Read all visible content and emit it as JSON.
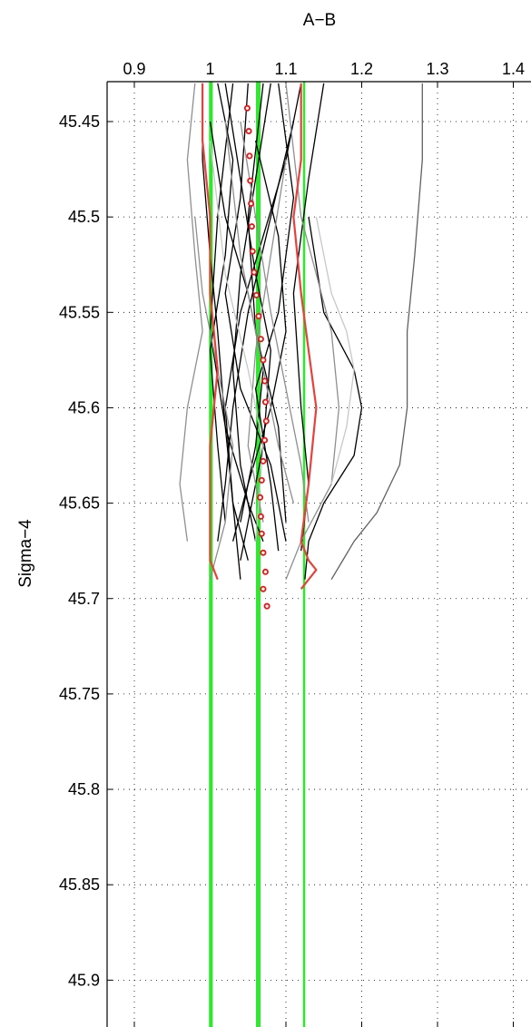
{
  "chart_data": {
    "type": "line",
    "title": "",
    "xlabel": "A−B",
    "ylabel": "Sigma−4",
    "x_axis_position": "top",
    "y_axis_reversed": true,
    "xlim": [
      0.88,
      1.41
    ],
    "ylim": [
      45.43,
      45.935
    ],
    "xticks": [
      "0.9",
      "1",
      "1.1",
      "1.2",
      "1.3",
      "1.4"
    ],
    "xtick_values": [
      0.9,
      1.0,
      1.1,
      1.2,
      1.3,
      1.4
    ],
    "yticks": [
      "45.45",
      "45.5",
      "45.55",
      "45.6",
      "45.65",
      "45.7",
      "45.75",
      "45.8",
      "45.85",
      "45.9"
    ],
    "ytick_values": [
      45.45,
      45.5,
      45.55,
      45.6,
      45.65,
      45.7,
      45.75,
      45.8,
      45.85,
      45.9
    ],
    "grid": true,
    "legend": "none",
    "colors": {
      "black": "#000000",
      "dark_gray": "#606060",
      "gray": "#8f8f8f",
      "light_gray": "#c8c8c8",
      "highlight": "#e8413c",
      "reference": "#2ee82e",
      "marker": "#ee1111"
    },
    "reference_lines": [
      {
        "x": 1.0,
        "color": "reference"
      },
      {
        "x": 1.002,
        "color": "reference"
      },
      {
        "x": 1.062,
        "color": "reference"
      },
      {
        "x": 1.065,
        "color": "reference"
      },
      {
        "x": 1.124,
        "color": "reference"
      }
    ],
    "profiles": [
      {
        "color": "black",
        "points": [
          [
            0.99,
            45.43
          ],
          [
            0.99,
            45.47
          ],
          [
            1.0,
            45.52
          ],
          [
            1.01,
            45.56
          ],
          [
            1.02,
            45.61
          ],
          [
            1.03,
            45.65
          ],
          [
            1.04,
            45.69
          ]
        ]
      },
      {
        "color": "black",
        "points": [
          [
            1.02,
            45.43
          ],
          [
            1.04,
            45.48
          ],
          [
            1.06,
            45.53
          ],
          [
            1.08,
            45.57
          ],
          [
            1.07,
            45.62
          ],
          [
            1.05,
            45.66
          ],
          [
            1.04,
            45.68
          ]
        ]
      },
      {
        "color": "black",
        "points": [
          [
            1.05,
            45.43
          ],
          [
            1.04,
            45.49
          ],
          [
            1.02,
            45.54
          ],
          [
            1.04,
            45.59
          ],
          [
            1.08,
            45.63
          ],
          [
            1.1,
            45.67
          ]
        ]
      },
      {
        "color": "black",
        "points": [
          [
            1.08,
            45.43
          ],
          [
            1.06,
            45.48
          ],
          [
            1.04,
            45.53
          ],
          [
            1.03,
            45.58
          ],
          [
            1.04,
            45.63
          ],
          [
            1.06,
            45.67
          ]
        ]
      },
      {
        "color": "black",
        "points": [
          [
            1.12,
            45.43
          ],
          [
            1.1,
            45.47
          ],
          [
            1.07,
            45.51
          ],
          [
            1.04,
            45.55
          ],
          [
            1.02,
            45.6
          ],
          [
            1.03,
            45.65
          ],
          [
            1.05,
            45.68
          ]
        ]
      },
      {
        "color": "black",
        "points": [
          [
            1.15,
            45.43
          ],
          [
            1.13,
            45.48
          ],
          [
            1.11,
            45.54
          ],
          [
            1.12,
            45.6
          ],
          [
            1.13,
            45.64
          ],
          [
            1.12,
            45.675
          ]
        ]
      },
      {
        "color": "black",
        "points": [
          [
            1.13,
            45.5
          ],
          [
            1.15,
            45.55
          ],
          [
            1.19,
            45.58
          ],
          [
            1.2,
            45.6
          ],
          [
            1.19,
            45.625
          ],
          [
            1.15,
            45.65
          ],
          [
            1.13,
            45.67
          ],
          [
            1.125,
            45.69
          ]
        ]
      },
      {
        "color": "black",
        "points": [
          [
            1.0,
            45.45
          ],
          [
            1.02,
            45.5
          ],
          [
            1.05,
            45.54
          ],
          [
            1.07,
            45.58
          ],
          [
            1.06,
            45.62
          ],
          [
            1.04,
            45.66
          ]
        ]
      },
      {
        "color": "black",
        "points": [
          [
            1.03,
            45.43
          ],
          [
            1.01,
            45.5
          ],
          [
            1.0,
            45.56
          ],
          [
            1.02,
            45.61
          ],
          [
            1.05,
            45.65
          ],
          [
            1.07,
            45.67
          ]
        ]
      },
      {
        "color": "black",
        "points": [
          [
            1.06,
            45.46
          ],
          [
            1.09,
            45.51
          ],
          [
            1.1,
            45.56
          ],
          [
            1.08,
            45.6
          ],
          [
            1.05,
            45.64
          ],
          [
            1.03,
            45.67
          ]
        ]
      },
      {
        "color": "black",
        "points": [
          [
            1.09,
            45.43
          ],
          [
            1.11,
            45.49
          ],
          [
            1.09,
            45.55
          ],
          [
            1.06,
            45.59
          ],
          [
            1.08,
            45.64
          ],
          [
            1.09,
            45.675
          ]
        ]
      },
      {
        "color": "black",
        "points": [
          [
            1.11,
            45.45
          ],
          [
            1.08,
            45.5
          ],
          [
            1.05,
            45.55
          ],
          [
            1.03,
            45.6
          ],
          [
            1.02,
            45.64
          ],
          [
            1.01,
            45.67
          ]
        ]
      },
      {
        "color": "black",
        "points": [
          [
            1.01,
            45.43
          ],
          [
            1.03,
            45.47
          ],
          [
            1.02,
            45.52
          ],
          [
            1.0,
            45.57
          ],
          [
            1.01,
            45.62
          ],
          [
            1.02,
            45.66
          ]
        ]
      },
      {
        "color": "black",
        "points": [
          [
            1.07,
            45.43
          ],
          [
            1.05,
            45.5
          ],
          [
            1.06,
            45.56
          ],
          [
            1.09,
            45.61
          ],
          [
            1.1,
            45.66
          ]
        ]
      },
      {
        "color": "dark_gray",
        "points": [
          [
            1.28,
            45.43
          ],
          [
            1.28,
            45.47
          ],
          [
            1.27,
            45.52
          ],
          [
            1.26,
            45.56
          ],
          [
            1.26,
            45.6
          ],
          [
            1.25,
            45.63
          ],
          [
            1.22,
            45.655
          ],
          [
            1.19,
            45.67
          ],
          [
            1.16,
            45.69
          ]
        ]
      },
      {
        "color": "gray",
        "points": [
          [
            0.98,
            45.43
          ],
          [
            0.97,
            45.47
          ],
          [
            0.98,
            45.52
          ],
          [
            0.99,
            45.56
          ],
          [
            0.97,
            45.6
          ],
          [
            0.96,
            45.64
          ],
          [
            0.97,
            45.67
          ]
        ]
      },
      {
        "color": "gray",
        "points": [
          [
            1.1,
            45.43
          ],
          [
            1.12,
            45.5
          ],
          [
            1.16,
            45.56
          ],
          [
            1.17,
            45.6
          ],
          [
            1.16,
            45.64
          ],
          [
            1.12,
            45.67
          ],
          [
            1.1,
            45.69
          ]
        ]
      },
      {
        "color": "gray",
        "points": [
          [
            1.04,
            45.45
          ],
          [
            1.06,
            45.5
          ],
          [
            1.08,
            45.55
          ],
          [
            1.1,
            45.59
          ],
          [
            1.12,
            45.63
          ],
          [
            1.13,
            45.66
          ]
        ]
      },
      {
        "color": "gray",
        "points": [
          [
            0.98,
            45.5
          ],
          [
            0.99,
            45.54
          ],
          [
            1.01,
            45.58
          ],
          [
            1.03,
            45.62
          ],
          [
            1.02,
            45.66
          ],
          [
            1.0,
            45.69
          ]
        ]
      },
      {
        "color": "gray",
        "points": [
          [
            1.1,
            45.47
          ],
          [
            1.08,
            45.52
          ],
          [
            1.06,
            45.57
          ],
          [
            1.05,
            45.62
          ],
          [
            1.07,
            45.66
          ]
        ]
      },
      {
        "color": "gray",
        "points": [
          [
            1.02,
            45.45
          ],
          [
            1.04,
            45.52
          ],
          [
            1.07,
            45.58
          ],
          [
            1.09,
            45.62
          ],
          [
            1.11,
            45.65
          ]
        ]
      },
      {
        "color": "light_gray",
        "points": [
          [
            1.14,
            45.5
          ],
          [
            1.16,
            45.54
          ],
          [
            1.18,
            45.56
          ],
          [
            1.19,
            45.58
          ],
          [
            1.18,
            45.61
          ],
          [
            1.16,
            45.64
          ]
        ]
      },
      {
        "color": "light_gray",
        "points": [
          [
            1.0,
            45.46
          ],
          [
            1.02,
            45.53
          ],
          [
            1.05,
            45.58
          ],
          [
            1.07,
            45.62
          ],
          [
            1.06,
            45.67
          ]
        ]
      },
      {
        "color": "highlight",
        "points": [
          [
            0.99,
            45.43
          ],
          [
            0.99,
            45.46
          ],
          [
            1.0,
            45.5
          ],
          [
            1.0,
            45.54
          ],
          [
            1.01,
            45.58
          ],
          [
            1.0,
            45.62
          ],
          [
            1.0,
            45.655
          ],
          [
            1.0,
            45.68
          ],
          [
            1.01,
            45.69
          ]
        ]
      },
      {
        "color": "highlight",
        "points": [
          [
            1.12,
            45.43
          ],
          [
            1.12,
            45.47
          ],
          [
            1.11,
            45.5
          ],
          [
            1.12,
            45.54
          ],
          [
            1.13,
            45.57
          ],
          [
            1.14,
            45.6
          ],
          [
            1.13,
            45.64
          ],
          [
            1.12,
            45.67
          ],
          [
            1.13,
            45.68
          ],
          [
            1.14,
            45.685
          ],
          [
            1.12,
            45.695
          ]
        ]
      }
    ],
    "markers": {
      "color": "marker",
      "points": [
        [
          1.049,
          45.443
        ],
        [
          1.051,
          45.455
        ],
        [
          1.052,
          45.468
        ],
        [
          1.053,
          45.481
        ],
        [
          1.054,
          45.493
        ],
        [
          1.055,
          45.505
        ],
        [
          1.056,
          45.518
        ],
        [
          1.058,
          45.529
        ],
        [
          1.061,
          45.541
        ],
        [
          1.064,
          45.552
        ],
        [
          1.067,
          45.564
        ],
        [
          1.07,
          45.575
        ],
        [
          1.072,
          45.586
        ],
        [
          1.073,
          45.597
        ],
        [
          1.074,
          45.607
        ],
        [
          1.072,
          45.617
        ],
        [
          1.07,
          45.628
        ],
        [
          1.068,
          45.638
        ],
        [
          1.066,
          45.647
        ],
        [
          1.067,
          45.657
        ],
        [
          1.068,
          45.666
        ],
        [
          1.07,
          45.676
        ],
        [
          1.073,
          45.686
        ],
        [
          1.07,
          45.695
        ],
        [
          1.075,
          45.704
        ]
      ]
    }
  }
}
